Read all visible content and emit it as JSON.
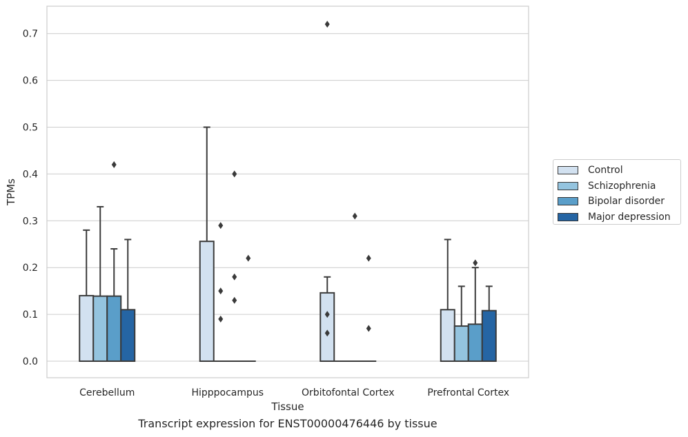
{
  "chart_data": {
    "type": "box",
    "xlabel": "Tissue",
    "ylabel": "TPMs",
    "caption": "Transcript expression for ENST00000476446 by tissue",
    "ylim": [
      -0.035,
      0.76
    ],
    "yticks": [
      "0.0",
      "0.1",
      "0.2",
      "0.3",
      "0.4",
      "0.5",
      "0.6",
      "0.7"
    ],
    "grid": true,
    "legend_position": "right",
    "categories": [
      "Cerebellum",
      "Hipppocampus",
      "Orbitofontal Cortex",
      "Prefrontal Cortex"
    ],
    "series": [
      {
        "name": "Control",
        "color": "#d2e1f0",
        "boxes": [
          {
            "q1": 0.0,
            "median": 0.0,
            "q3": 0.14,
            "whisker_high": 0.28,
            "outliers": []
          },
          {
            "q1": 0.0,
            "median": 0.0,
            "q3": 0.256,
            "whisker_high": 0.5,
            "outliers": []
          },
          {
            "q1": 0.0,
            "median": 0.0,
            "q3": 0.146,
            "whisker_high": 0.18,
            "outliers": [
              0.1,
              0.06,
              0.72
            ]
          },
          {
            "q1": 0.0,
            "median": 0.0,
            "q3": 0.11,
            "whisker_high": 0.26,
            "outliers": []
          }
        ]
      },
      {
        "name": "Schizophrenia",
        "color": "#94c4df",
        "boxes": [
          {
            "q1": 0.0,
            "median": 0.0,
            "q3": 0.139,
            "whisker_high": 0.33,
            "outliers": []
          },
          {
            "q1": 0.0,
            "median": 0.0,
            "q3": 0.0,
            "whisker_high": 0.0,
            "outliers": [
              0.29,
              0.15,
              0.09
            ]
          },
          {
            "q1": 0.0,
            "median": 0.0,
            "q3": 0.0,
            "whisker_high": 0.0,
            "outliers": []
          },
          {
            "q1": 0.0,
            "median": 0.0,
            "q3": 0.075,
            "whisker_high": 0.16,
            "outliers": []
          }
        ]
      },
      {
        "name": "Bipolar disorder",
        "color": "#5a9ec9",
        "boxes": [
          {
            "q1": 0.0,
            "median": 0.0,
            "q3": 0.139,
            "whisker_high": 0.24,
            "outliers": [
              0.42
            ]
          },
          {
            "q1": 0.0,
            "median": 0.0,
            "q3": 0.0,
            "whisker_high": 0.0,
            "outliers": [
              0.4,
              0.18,
              0.13
            ]
          },
          {
            "q1": 0.0,
            "median": 0.0,
            "q3": 0.0,
            "whisker_high": 0.0,
            "outliers": [
              0.31
            ]
          },
          {
            "q1": 0.0,
            "median": 0.0,
            "q3": 0.079,
            "whisker_high": 0.2,
            "outliers": [
              0.21
            ]
          }
        ]
      },
      {
        "name": "Major depression",
        "color": "#2565a4",
        "boxes": [
          {
            "q1": 0.0,
            "median": 0.0,
            "q3": 0.11,
            "whisker_high": 0.26,
            "outliers": []
          },
          {
            "q1": 0.0,
            "median": 0.0,
            "q3": 0.0,
            "whisker_high": 0.0,
            "outliers": [
              0.22
            ]
          },
          {
            "q1": 0.0,
            "median": 0.0,
            "q3": 0.0,
            "whisker_high": 0.0,
            "outliers": [
              0.22,
              0.07
            ]
          },
          {
            "q1": 0.0,
            "median": 0.0,
            "q3": 0.108,
            "whisker_high": 0.16,
            "outliers": []
          }
        ]
      }
    ]
  }
}
